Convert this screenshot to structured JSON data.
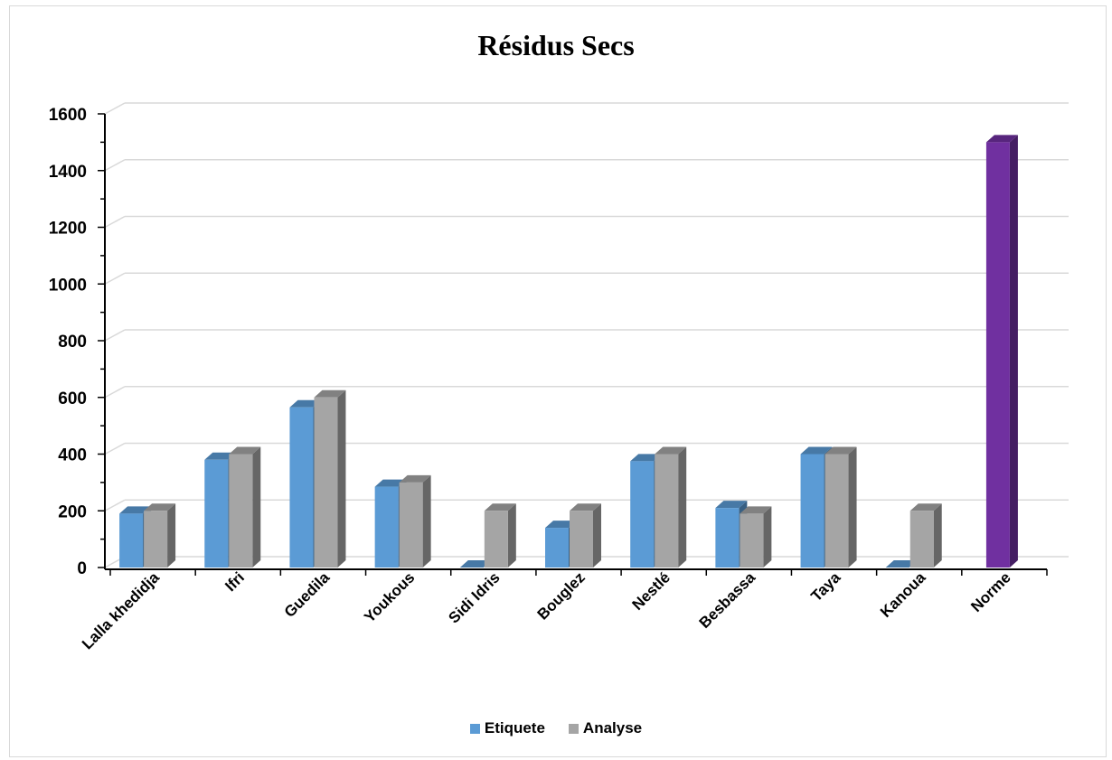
{
  "chart_data": {
    "type": "bar",
    "title": "Résidus Secs",
    "xlabel": "",
    "ylabel": "",
    "ylim": [
      0,
      1600
    ],
    "yticks": [
      0,
      200,
      400,
      600,
      800,
      1000,
      1200,
      1400,
      1600
    ],
    "grid": true,
    "legend_position": "bottom",
    "categories": [
      "Lalla khedidja",
      "Ifri",
      "Guedila",
      "Youkous",
      "Sidi Idris",
      "Bouglez",
      "Nestlé",
      "Besbassa",
      "Taya",
      "Kanoua",
      "Norme"
    ],
    "series": [
      {
        "name": "Etiquete",
        "color": "#5b9bd5",
        "values": [
          190,
          380,
          565,
          285,
          0,
          140,
          375,
          210,
          400,
          0,
          null
        ]
      },
      {
        "name": "Analyse",
        "color": "#a5a5a5",
        "values": [
          200,
          400,
          600,
          300,
          200,
          200,
          400,
          190,
          400,
          200,
          null
        ]
      },
      {
        "name": "",
        "color": "#7030a0",
        "values": [
          null,
          null,
          null,
          null,
          null,
          null,
          null,
          null,
          null,
          null,
          1500
        ]
      }
    ]
  }
}
